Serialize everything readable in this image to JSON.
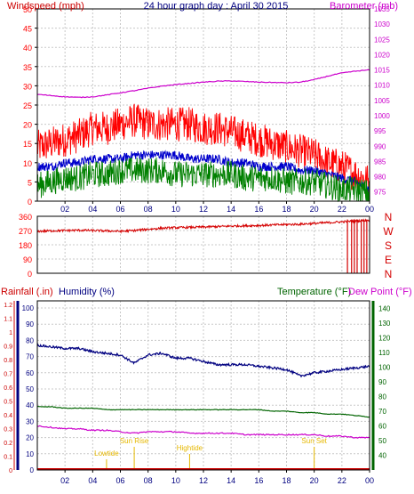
{
  "header": {
    "left_label": "Windspeed (mph)",
    "center_label": "24 hour graph day : April 30 2015",
    "right_label": "Barometer (mb)"
  },
  "colors": {
    "wind_red": "#ff0000",
    "wind_blue": "#0000cc",
    "wind_green": "#008000",
    "baro_magenta": "#cc00cc",
    "dir_red": "#d40000",
    "humidity_navy": "#000080",
    "temp_green": "#006400",
    "dew_magenta": "#cc00cc",
    "rain_red": "#cc0000",
    "astro_yellow": "#e6b800",
    "grid": "#c8c8c8",
    "x_tick_blue": "#000080"
  },
  "x_ticks": [
    "02",
    "04",
    "06",
    "08",
    "10",
    "12",
    "14",
    "16",
    "18",
    "20",
    "22",
    "00"
  ],
  "chart_data": [
    {
      "type": "line",
      "title": "24 hour graph day : April 30 2015",
      "ylabel_left": "Windspeed (mph)",
      "ylabel_right": "Barometer (mb)",
      "y_left_ticks": [
        "0",
        "5",
        "10",
        "15",
        "20",
        "25",
        "30",
        "35",
        "40",
        "45",
        "50"
      ],
      "ylim_left": [
        0,
        50
      ],
      "y_right_ticks": [
        "975",
        "980",
        "985",
        "990",
        "995",
        "1000",
        "1005",
        "1010",
        "1015",
        "1020",
        "1025",
        "1030",
        "1035"
      ],
      "ylim_right": [
        972,
        1035
      ],
      "x_hours": [
        0,
        1,
        2,
        3,
        4,
        5,
        6,
        7,
        8,
        9,
        10,
        11,
        12,
        13,
        14,
        15,
        16,
        17,
        18,
        19,
        20,
        21,
        22,
        23,
        24
      ],
      "grid": true,
      "series": [
        {
          "axis": "left",
          "values": [
            14,
            15,
            16,
            17,
            19,
            19,
            20,
            21,
            20,
            20,
            20,
            20,
            19,
            19,
            18,
            17,
            16,
            15,
            14,
            13,
            12,
            10,
            9,
            7,
            5
          ]
        },
        {
          "axis": "left",
          "values": [
            9,
            9,
            10,
            10,
            11,
            11,
            11,
            12,
            12,
            12,
            12,
            11,
            11,
            11,
            10,
            10,
            9,
            9,
            9,
            8,
            8,
            7,
            6,
            5,
            3
          ]
        },
        {
          "axis": "left",
          "values": [
            4,
            5,
            6,
            6,
            7,
            7,
            8,
            8,
            8,
            8,
            7,
            7,
            7,
            7,
            7,
            6,
            6,
            6,
            5,
            5,
            5,
            4,
            3,
            3,
            2
          ]
        },
        {
          "axis": "right",
          "values": [
            1007,
            1006.6,
            1006.2,
            1006,
            1006.2,
            1006.8,
            1007.5,
            1008.2,
            1009,
            1009.7,
            1010.2,
            1010.6,
            1011,
            1011.3,
            1011.4,
            1011.2,
            1011,
            1010.9,
            1010.8,
            1011,
            1011.8,
            1013,
            1014,
            1014.6,
            1015
          ]
        }
      ]
    },
    {
      "type": "line",
      "ylabel_right_letters": [
        "N",
        "W",
        "S",
        "E",
        "N"
      ],
      "y_left_ticks": [
        "0",
        "90",
        "180",
        "270",
        "360"
      ],
      "ylim_left": [
        0,
        360
      ],
      "x_hours": [
        0,
        1,
        2,
        3,
        4,
        5,
        6,
        7,
        8,
        9,
        10,
        11,
        12,
        13,
        14,
        15,
        16,
        17,
        18,
        19,
        20,
        21,
        22,
        23,
        24
      ],
      "grid": true,
      "series": [
        {
          "values": [
            265,
            268,
            270,
            272,
            270,
            268,
            265,
            270,
            278,
            285,
            288,
            290,
            292,
            295,
            298,
            300,
            302,
            305,
            308,
            310,
            315,
            320,
            325,
            330,
            335
          ]
        }
      ]
    },
    {
      "type": "line",
      "ylabel_left_1": "Rainfall (.in)",
      "ylabel_left_2": "Humidity (%)",
      "ylabel_right_1": "Temperature (°F)",
      "ylabel_right_2": "Dew Point (°F)",
      "rain_ticks": [
        "0",
        "0.1",
        "0.2",
        "0.3",
        "0.4",
        "0.5",
        "0.6",
        "0.7",
        "0.8",
        "0.9",
        "1",
        "1.1",
        "1.2"
      ],
      "ylim_rain": [
        0,
        1.2
      ],
      "humidity_ticks": [
        "0",
        "10",
        "20",
        "30",
        "40",
        "50",
        "60",
        "70",
        "80",
        "90",
        "100"
      ],
      "ylim_humidity": [
        0,
        100
      ],
      "temp_ticks": [
        "40",
        "50",
        "60",
        "70",
        "80",
        "90",
        "100",
        "110",
        "120",
        "130",
        "140"
      ],
      "ylim_temp": [
        30,
        145
      ],
      "x_hours": [
        0,
        1,
        2,
        3,
        4,
        5,
        6,
        7,
        8,
        9,
        10,
        11,
        12,
        13,
        14,
        15,
        16,
        17,
        18,
        19,
        20,
        21,
        22,
        23,
        24
      ],
      "grid": true,
      "series": [
        {
          "axis": "humidity",
          "values": [
            77,
            76,
            75,
            75,
            73,
            72,
            71,
            66,
            71,
            72,
            69,
            69,
            67,
            65,
            65,
            65,
            64,
            63,
            62,
            58,
            60,
            61,
            62,
            63,
            64
          ]
        },
        {
          "axis": "temp",
          "values": [
            73,
            73,
            72,
            72,
            72,
            71,
            71,
            71,
            71,
            71,
            71,
            71,
            71,
            71,
            71,
            71,
            71,
            70,
            70,
            69,
            69,
            68,
            68,
            67,
            66
          ]
        },
        {
          "axis": "temp",
          "values": [
            60,
            59,
            58,
            58,
            57,
            57,
            56,
            55,
            56,
            56,
            56,
            55,
            55,
            55,
            55,
            54,
            54,
            54,
            54,
            54,
            54,
            53,
            53,
            52,
            52
          ]
        }
      ],
      "annotations": [
        {
          "label": "Lowtide",
          "hour": 5
        },
        {
          "label": "Sun Rise",
          "hour": 7
        },
        {
          "label": "Hightide",
          "hour": 11
        },
        {
          "label": "Sun Set",
          "hour": 20
        }
      ]
    }
  ]
}
